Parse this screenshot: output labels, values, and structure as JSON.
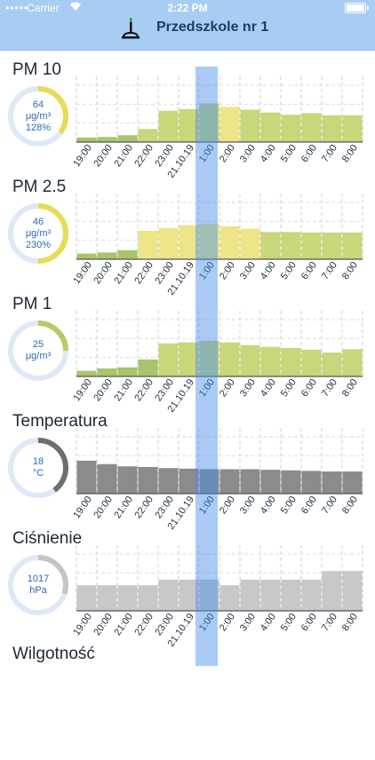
{
  "status_bar": {
    "carrier": "Carrier",
    "time": "2:22 PM"
  },
  "header": {
    "title": "Przedszkole nr 1",
    "icon": "sensor-icon"
  },
  "hour_labels": [
    "19:00",
    "20:00",
    "21:00",
    "22:00",
    "23:00",
    "21.10.19",
    "1:00",
    "2:00",
    "3:00",
    "4:00",
    "5:00",
    "6:00",
    "7:00",
    "8:00"
  ],
  "sections": [
    {
      "title": "PM 10",
      "gauge": {
        "value": "64",
        "unit": "μg/m³",
        "percent": "128%",
        "fill": 0.35,
        "color": "#e6dc55"
      },
      "bars": [
        0.08,
        0.09,
        0.12,
        0.23,
        0.55,
        0.58,
        0.68,
        0.62,
        0.57,
        0.52,
        0.48,
        0.51,
        0.47,
        0.47
      ],
      "colors": [
        "#a8c56b",
        "#a8c56b",
        "#a8c56b",
        "#c9d679",
        "#c9d679",
        "#c9d679",
        "#c9d679",
        "#ede588",
        "#c9d679",
        "#c9d679",
        "#c9d679",
        "#c9d679",
        "#c9d679",
        "#c9d679"
      ]
    },
    {
      "title": "PM 2.5",
      "gauge": {
        "value": "46",
        "unit": "μg/m³",
        "percent": "230%",
        "fill": 0.5,
        "color": "#e6dc55"
      },
      "bars": [
        0.1,
        0.12,
        0.16,
        0.5,
        0.55,
        0.6,
        0.62,
        0.58,
        0.54,
        0.48,
        0.48,
        0.47,
        0.47,
        0.47
      ],
      "colors": [
        "#a8c56b",
        "#a8c56b",
        "#a8c56b",
        "#ede588",
        "#ede588",
        "#ede588",
        "#ede588",
        "#ede588",
        "#ede588",
        "#c9d679",
        "#c9d679",
        "#c9d679",
        "#c9d679",
        "#c9d679"
      ]
    },
    {
      "title": "PM 1",
      "gauge": {
        "value": "25",
        "unit": "μg/m³",
        "percent": "",
        "fill": 0.25,
        "color": "#b9c86a"
      },
      "bars": [
        0.1,
        0.14,
        0.16,
        0.3,
        0.58,
        0.6,
        0.63,
        0.6,
        0.55,
        0.52,
        0.5,
        0.47,
        0.42,
        0.48
      ],
      "colors": [
        "#a8c56b",
        "#a8c56b",
        "#a8c56b",
        "#a8c56b",
        "#c9d679",
        "#c9d679",
        "#c9d679",
        "#c9d679",
        "#c9d679",
        "#c9d679",
        "#c9d679",
        "#c9d679",
        "#c9d679",
        "#c9d679"
      ]
    },
    {
      "title": "Temperatura",
      "gauge": {
        "value": "18",
        "unit": "°C",
        "percent": "",
        "fill": 0.4,
        "color": "#6f6f6f"
      },
      "bars": [
        0.58,
        0.52,
        0.48,
        0.47,
        0.45,
        0.44,
        0.43,
        0.43,
        0.43,
        0.42,
        0.41,
        0.4,
        0.39,
        0.39
      ],
      "colors": [
        "#8b8b8b",
        "#8b8b8b",
        "#8b8b8b",
        "#8b8b8b",
        "#8b8b8b",
        "#8b8b8b",
        "#8b8b8b",
        "#8b8b8b",
        "#8b8b8b",
        "#8b8b8b",
        "#8b8b8b",
        "#8b8b8b",
        "#8b8b8b",
        "#8b8b8b"
      ]
    },
    {
      "title": "Ciśnienie",
      "gauge": {
        "value": "1017",
        "unit": "hPa",
        "percent": "",
        "fill": 0.3,
        "color": "#c4c4c4"
      },
      "bars": [
        0.45,
        0.45,
        0.45,
        0.45,
        0.55,
        0.55,
        0.55,
        0.45,
        0.55,
        0.55,
        0.55,
        0.55,
        0.7,
        0.7
      ],
      "colors": [
        "#c8c8c8",
        "#c8c8c8",
        "#c8c8c8",
        "#c8c8c8",
        "#c8c8c8",
        "#c8c8c8",
        "#c8c8c8",
        "#c8c8c8",
        "#c8c8c8",
        "#c8c8c8",
        "#c8c8c8",
        "#c8c8c8",
        "#c8c8c8",
        "#c8c8c8"
      ]
    },
    {
      "title": "Wilgotność"
    }
  ]
}
